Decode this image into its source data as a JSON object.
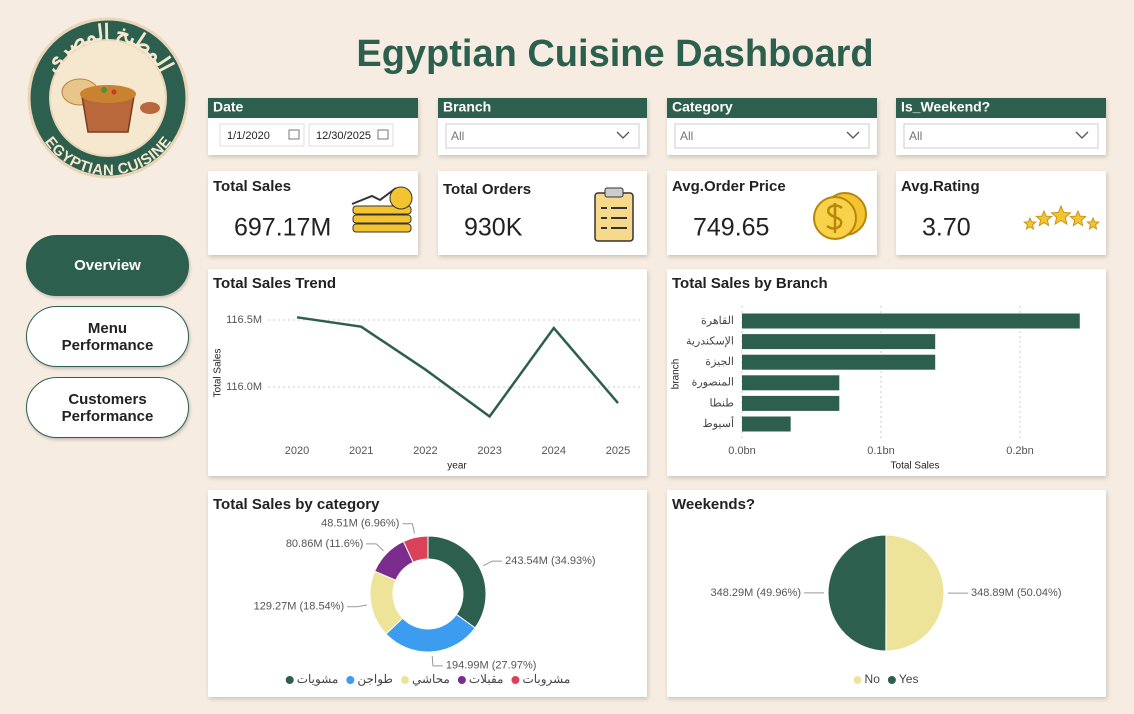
{
  "title": "Egyptian Cuisine Dashboard",
  "logo": {
    "arabic": "المطبخ المصري",
    "english": "EGYPTIAN CUISINE"
  },
  "nav": [
    "Overview",
    "Menu Performance",
    "Customers Performance"
  ],
  "filters": [
    {
      "label": "Date",
      "from": "1/1/2020",
      "to": "12/30/2025"
    },
    {
      "label": "Branch",
      "value": "All"
    },
    {
      "label": "Category",
      "value": "All"
    },
    {
      "label": "Is_Weekend?",
      "value": "All"
    }
  ],
  "kpis": [
    {
      "label": "Total Sales",
      "value": "697.17M"
    },
    {
      "label": "Total Orders",
      "value": "930K"
    },
    {
      "label": "Avg.Order Price",
      "value": "749.65"
    },
    {
      "label": "Avg.Rating",
      "value": "3.70"
    }
  ],
  "chart_data": [
    {
      "type": "line",
      "title": "Total Sales Trend",
      "x_label": "year",
      "y_label": "Total Sales",
      "categories": [
        "2020",
        "2021",
        "2022",
        "2023",
        "2024",
        "2025"
      ],
      "values": [
        116.52,
        116.45,
        116.13,
        115.78,
        116.44,
        115.88
      ],
      "color": "#2d5f4e",
      "ylim": [
        115.7,
        116.6
      ],
      "yticks": [
        {
          "value": 116.0,
          "label": "116.0M"
        },
        {
          "value": 116.5,
          "label": "116.5M"
        }
      ],
      "grid": true
    },
    {
      "type": "hbar",
      "title": "Total Sales by Branch",
      "x_label": "Total Sales",
      "y_label": "branch",
      "categories": [
        "القاهرة",
        "الإسكندرية",
        "الجيزة",
        "المنصورة",
        "طنطا",
        "أسيوط"
      ],
      "values": [
        0.243,
        0.139,
        0.139,
        0.07,
        0.07,
        0.035
      ],
      "color": "#2d5f4e",
      "xlim": [
        0,
        0.25
      ],
      "xticks": [
        {
          "value": 0,
          "label": "0.0bn"
        },
        {
          "value": 0.1,
          "label": "0.1bn"
        },
        {
          "value": 0.2,
          "label": "0.2bn"
        }
      ],
      "grid": true
    },
    {
      "type": "donut",
      "title": "Total Sales by category",
      "categories": [
        "مشويات",
        "طواجن",
        "محاشي",
        "مقبلات",
        "مشروبات"
      ],
      "values": [
        243.54,
        194.99,
        129.27,
        80.86,
        48.51
      ],
      "value_labels": [
        "243.54M (34.93%)",
        "194.99M (27.97%)",
        "129.27M (18.54%)",
        "80.86M (11.6%)",
        "48.51M (6.96%)"
      ],
      "colors": [
        "#2d5f4e",
        "#3b9cf0",
        "#ede49a",
        "#7b2d8e",
        "#d9435a"
      ],
      "legend": "bottom"
    },
    {
      "type": "pie",
      "title": "Weekends?",
      "categories": [
        "No",
        "Yes"
      ],
      "values": [
        348.89,
        348.29
      ],
      "value_labels": [
        "348.89M (50.04%)",
        "348.29M (49.96%)"
      ],
      "colors": [
        "#ede49a",
        "#2d5f4e"
      ],
      "legend": "bottom"
    }
  ]
}
